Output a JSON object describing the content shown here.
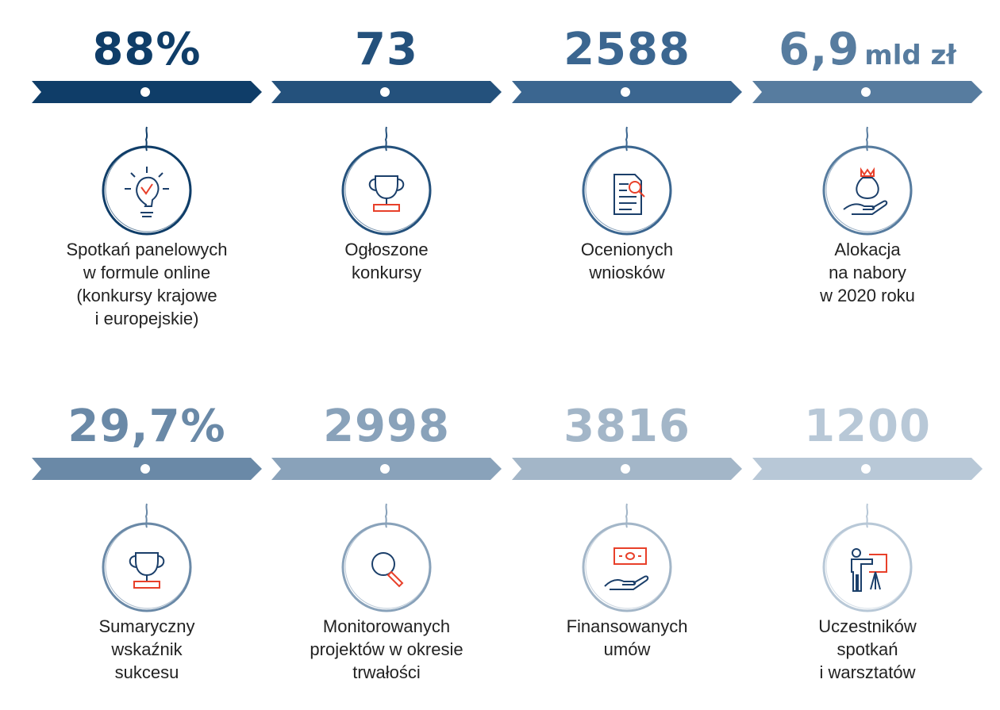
{
  "colors": {
    "accent": "#e8402a",
    "icon": "#1b3f6a"
  },
  "stats": [
    {
      "value": "88%",
      "unit": "",
      "color": "#0f3d68",
      "icon": "lightbulb-check",
      "label": "Spotkań panelowych\nw formule online\n(konkursy krajowe\ni europejskie)"
    },
    {
      "value": "73",
      "unit": "",
      "color": "#24517c",
      "icon": "trophy",
      "label": "Ogłoszone\nkonkursy"
    },
    {
      "value": "2588",
      "unit": "",
      "color": "#3b6690",
      "icon": "document-search",
      "label": "Ocenionych\nwniosków"
    },
    {
      "value": "6,9",
      "unit": "mld zł",
      "color": "#577c9f",
      "icon": "money-bag-hand",
      "label": "Alokacja\nna nabory\nw 2020 roku"
    },
    {
      "value": "29,7%",
      "unit": "",
      "color": "#6a89a7",
      "icon": "trophy",
      "label": "Sumaryczny\nwskaźnik\nsukcesu"
    },
    {
      "value": "2998",
      "unit": "",
      "color": "#89a2ba",
      "icon": "magnifier",
      "label": "Monitorowanych\nprojektów w okresie\ntrwałości"
    },
    {
      "value": "3816",
      "unit": "",
      "color": "#a3b6c8",
      "icon": "banknote-hand",
      "label": "Finansowanych\numów"
    },
    {
      "value": "1200",
      "unit": "",
      "color": "#b8c8d7",
      "icon": "presenter-board",
      "label": "Uczestników\nspotkań\ni warsztatów"
    }
  ]
}
